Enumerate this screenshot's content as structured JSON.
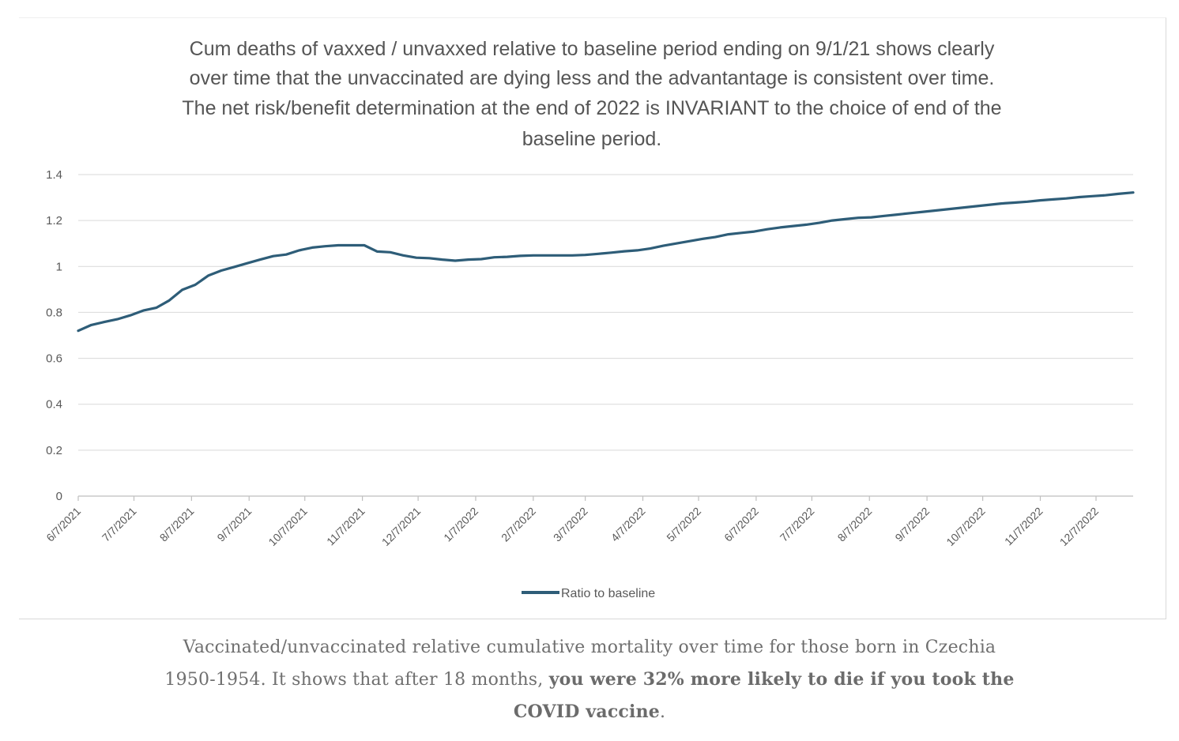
{
  "chart_data": {
    "type": "line",
    "title_lines": [
      "Cum deaths of vaxxed / unvaxxed relative to baseline period ending on 9/1/21 shows clearly",
      "over time that the unvaccinated are dying less and the advantantage is consistent over time.",
      "The net risk/benefit determination at the end of 2022 is INVARIANT to the choice of end of the",
      "baseline period."
    ],
    "xlabel": "",
    "ylabel": "",
    "ylim": [
      0,
      1.4
    ],
    "y_ticks": [
      "0",
      "0.2",
      "0.4",
      "0.6",
      "0.8",
      "1",
      "1.2",
      "1.4"
    ],
    "x_tick_labels": [
      "6/7/2021",
      "7/7/2021",
      "8/7/2021",
      "9/7/2021",
      "10/7/2021",
      "11/7/2021",
      "12/7/2021",
      "1/7/2022",
      "2/7/2022",
      "3/7/2022",
      "4/7/2022",
      "5/7/2022",
      "6/7/2022",
      "7/7/2022",
      "8/7/2022",
      "9/7/2022",
      "10/7/2022",
      "11/7/2022",
      "12/7/2022"
    ],
    "xlim": [
      "2021-06-07",
      "2022-12-27"
    ],
    "grid": true,
    "legend_position": "bottom",
    "series": [
      {
        "name": "Ratio to baseline",
        "color": "#2e5d78",
        "x": [
          "2021-06-07",
          "2021-06-14",
          "2021-06-21",
          "2021-06-28",
          "2021-07-05",
          "2021-07-12",
          "2021-07-19",
          "2021-07-26",
          "2021-08-02",
          "2021-08-09",
          "2021-08-16",
          "2021-08-23",
          "2021-08-30",
          "2021-09-06",
          "2021-09-13",
          "2021-09-20",
          "2021-09-27",
          "2021-10-04",
          "2021-10-11",
          "2021-10-18",
          "2021-10-25",
          "2021-11-01",
          "2021-11-08",
          "2021-11-15",
          "2021-11-22",
          "2021-11-29",
          "2021-12-06",
          "2021-12-13",
          "2021-12-20",
          "2021-12-27",
          "2022-01-03",
          "2022-01-10",
          "2022-01-17",
          "2022-01-24",
          "2022-01-31",
          "2022-02-07",
          "2022-02-14",
          "2022-02-21",
          "2022-02-28",
          "2022-03-07",
          "2022-03-14",
          "2022-03-21",
          "2022-03-28",
          "2022-04-04",
          "2022-04-11",
          "2022-04-18",
          "2022-04-25",
          "2022-05-02",
          "2022-05-09",
          "2022-05-16",
          "2022-05-23",
          "2022-05-30",
          "2022-06-06",
          "2022-06-13",
          "2022-06-20",
          "2022-06-27",
          "2022-07-04",
          "2022-07-11",
          "2022-07-18",
          "2022-07-25",
          "2022-08-01",
          "2022-08-08",
          "2022-08-15",
          "2022-08-22",
          "2022-08-29",
          "2022-09-05",
          "2022-09-12",
          "2022-09-19",
          "2022-09-26",
          "2022-10-03",
          "2022-10-10",
          "2022-10-17",
          "2022-10-24",
          "2022-10-31",
          "2022-11-07",
          "2022-11-14",
          "2022-11-21",
          "2022-11-28",
          "2022-12-05",
          "2022-12-12",
          "2022-12-19",
          "2022-12-27"
        ],
        "values": [
          0.72,
          0.745,
          0.758,
          0.77,
          0.787,
          0.808,
          0.82,
          0.852,
          0.898,
          0.92,
          0.96,
          0.982,
          0.998,
          1.014,
          1.03,
          1.045,
          1.052,
          1.07,
          1.082,
          1.088,
          1.092,
          1.092,
          1.092,
          1.065,
          1.062,
          1.048,
          1.038,
          1.036,
          1.03,
          1.025,
          1.03,
          1.032,
          1.04,
          1.042,
          1.046,
          1.048,
          1.048,
          1.048,
          1.048,
          1.05,
          1.055,
          1.06,
          1.066,
          1.07,
          1.078,
          1.09,
          1.1,
          1.11,
          1.12,
          1.128,
          1.14,
          1.146,
          1.152,
          1.162,
          1.17,
          1.176,
          1.182,
          1.19,
          1.2,
          1.206,
          1.212,
          1.214,
          1.22,
          1.226,
          1.232,
          1.238,
          1.244,
          1.25,
          1.256,
          1.262,
          1.268,
          1.274,
          1.278,
          1.282,
          1.288,
          1.292,
          1.296,
          1.302,
          1.306,
          1.31,
          1.316,
          1.322
        ]
      }
    ]
  },
  "caption": {
    "part1": "Vaccinated/unvaccinated relative cumulative mortality over time for those born in Czechia 1950-1954. It shows that after 18 months, ",
    "bold": "you were 32% more likely to die if you took the COVID vaccine",
    "part2": "."
  }
}
